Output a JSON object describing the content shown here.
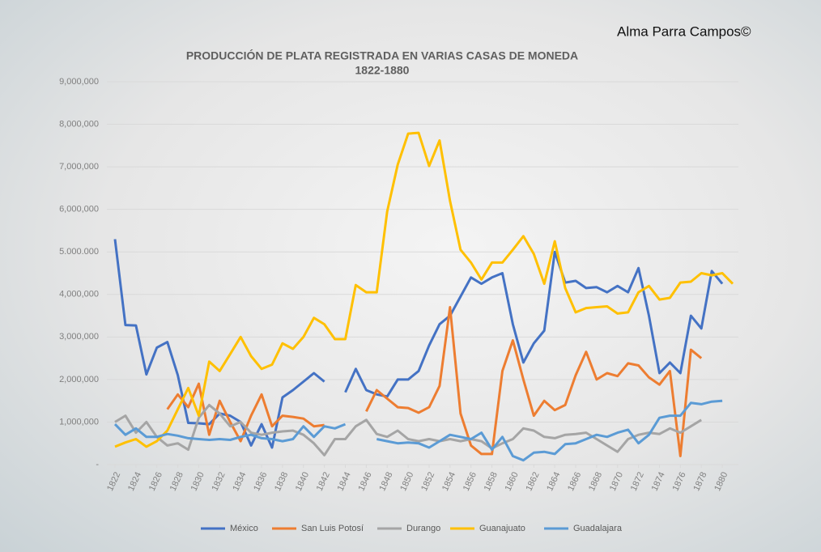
{
  "credit": "Alma Parra Campos©",
  "chart_data": {
    "type": "line",
    "title": "PRODUCCIÓN DE PLATA REGISTRADA EN VARIAS CASAS DE MONEDA",
    "subtitle": "1822-1880",
    "x": [
      1822,
      1823,
      1824,
      1825,
      1826,
      1827,
      1828,
      1829,
      1830,
      1831,
      1832,
      1833,
      1834,
      1835,
      1836,
      1837,
      1838,
      1839,
      1840,
      1841,
      1842,
      1843,
      1844,
      1845,
      1846,
      1847,
      1848,
      1849,
      1850,
      1851,
      1852,
      1853,
      1854,
      1855,
      1856,
      1857,
      1858,
      1859,
      1860,
      1861,
      1862,
      1863,
      1864,
      1865,
      1866,
      1867,
      1868,
      1869,
      1870,
      1871,
      1872,
      1873,
      1874,
      1875,
      1876,
      1877,
      1878,
      1879,
      1880,
      1881
    ],
    "xlim": [
      1822,
      1881
    ],
    "xticks": [
      1822,
      1824,
      1826,
      1828,
      1830,
      1832,
      1834,
      1836,
      1838,
      1840,
      1842,
      1844,
      1846,
      1848,
      1850,
      1852,
      1854,
      1856,
      1858,
      1860,
      1862,
      1864,
      1866,
      1868,
      1870,
      1872,
      1874,
      1876,
      1878,
      1880
    ],
    "ylim": [
      0,
      9000000
    ],
    "yticks": [
      {
        "value": 0,
        "label": "-"
      },
      {
        "value": 1000000,
        "label": "1,000,000"
      },
      {
        "value": 2000000,
        "label": "2,000,000"
      },
      {
        "value": 3000000,
        "label": "3,000,000"
      },
      {
        "value": 4000000,
        "label": "4,000,000"
      },
      {
        "value": 5000000,
        "label": "5.000.000"
      },
      {
        "value": 6000000,
        "label": "6,000,000"
      },
      {
        "value": 7000000,
        "label": "7,000,000"
      },
      {
        "value": 8000000,
        "label": "8,000,000"
      },
      {
        "value": 9000000,
        "label": "9,000,000"
      }
    ],
    "grid": true,
    "legend": "bottom",
    "series": [
      {
        "name": "México",
        "color": "#4472c4",
        "values": [
          5300000,
          3280000,
          3270000,
          2120000,
          2750000,
          2880000,
          2100000,
          980000,
          970000,
          950000,
          1200000,
          1150000,
          1000000,
          450000,
          950000,
          400000,
          1580000,
          1750000,
          1950000,
          2150000,
          1950000,
          null,
          1700000,
          2250000,
          1750000,
          1650000,
          1600000,
          2000000,
          2000000,
          2200000,
          2800000,
          3300000,
          3500000,
          3950000,
          4400000,
          4250000,
          4400000,
          4500000,
          3300000,
          2400000,
          2850000,
          3150000,
          5000000,
          4280000,
          4320000,
          4150000,
          4170000,
          4050000,
          4200000,
          4050000,
          4620000,
          3500000,
          2150000,
          2400000,
          2150000,
          3500000,
          3200000,
          4550000,
          4250000,
          null
        ]
      },
      {
        "name": "San Luis Potosí",
        "color": "#ed7d31",
        "values": [
          null,
          null,
          null,
          null,
          null,
          1300000,
          1650000,
          1350000,
          1900000,
          700000,
          1500000,
          1000000,
          550000,
          1150000,
          1650000,
          900000,
          1150000,
          1120000,
          1080000,
          900000,
          930000,
          null,
          null,
          null,
          1250000,
          1750000,
          1550000,
          1350000,
          1330000,
          1220000,
          1350000,
          1850000,
          3700000,
          1200000,
          450000,
          250000,
          250000,
          2200000,
          2920000,
          2000000,
          1150000,
          1500000,
          1280000,
          1400000,
          2100000,
          2650000,
          2000000,
          2150000,
          2080000,
          2380000,
          2330000,
          2050000,
          1880000,
          2200000,
          200000,
          2700000,
          2500000,
          null,
          null,
          null
        ]
      },
      {
        "name": "Durango",
        "color": "#a5a5a5",
        "values": [
          1000000,
          1150000,
          750000,
          1000000,
          650000,
          450000,
          500000,
          350000,
          1100000,
          1400000,
          1200000,
          900000,
          1000000,
          750000,
          700000,
          750000,
          780000,
          800000,
          700000,
          500000,
          220000,
          600000,
          600000,
          900000,
          1050000,
          720000,
          650000,
          800000,
          600000,
          550000,
          600000,
          550000,
          600000,
          550000,
          600000,
          550000,
          380000,
          500000,
          600000,
          850000,
          800000,
          650000,
          620000,
          700000,
          720000,
          750000,
          600000,
          450000,
          300000,
          600000,
          700000,
          750000,
          720000,
          850000,
          750000,
          900000,
          1050000,
          null,
          null,
          null
        ]
      },
      {
        "name": "Guanajuato",
        "color": "#ffc000",
        "values": [
          420000,
          520000,
          600000,
          420000,
          550000,
          800000,
          1300000,
          1800000,
          1150000,
          2420000,
          2200000,
          2600000,
          3000000,
          2550000,
          2250000,
          2350000,
          2850000,
          2720000,
          3000000,
          3450000,
          3300000,
          2950000,
          2950000,
          4220000,
          4050000,
          4050000,
          5950000,
          7050000,
          7780000,
          7800000,
          7020000,
          7620000,
          6200000,
          5050000,
          4750000,
          4350000,
          4750000,
          4750000,
          5050000,
          5370000,
          4950000,
          4250000,
          5250000,
          4150000,
          3580000,
          3680000,
          3700000,
          3720000,
          3550000,
          3580000,
          4050000,
          4200000,
          3880000,
          3920000,
          4280000,
          4300000,
          4500000,
          4450000,
          4500000,
          4250000
        ]
      },
      {
        "name": "Guadalajara",
        "color": "#5b9bd5",
        "values": [
          950000,
          700000,
          850000,
          650000,
          650000,
          720000,
          680000,
          620000,
          600000,
          580000,
          600000,
          580000,
          650000,
          700000,
          620000,
          600000,
          550000,
          600000,
          900000,
          650000,
          900000,
          850000,
          950000,
          null,
          null,
          600000,
          550000,
          500000,
          520000,
          500000,
          400000,
          550000,
          700000,
          650000,
          600000,
          750000,
          350000,
          650000,
          200000,
          100000,
          280000,
          300000,
          250000,
          480000,
          500000,
          600000,
          700000,
          650000,
          750000,
          820000,
          500000,
          700000,
          1100000,
          1150000,
          1150000,
          1450000,
          1420000,
          1480000,
          1500000,
          null
        ]
      }
    ]
  }
}
